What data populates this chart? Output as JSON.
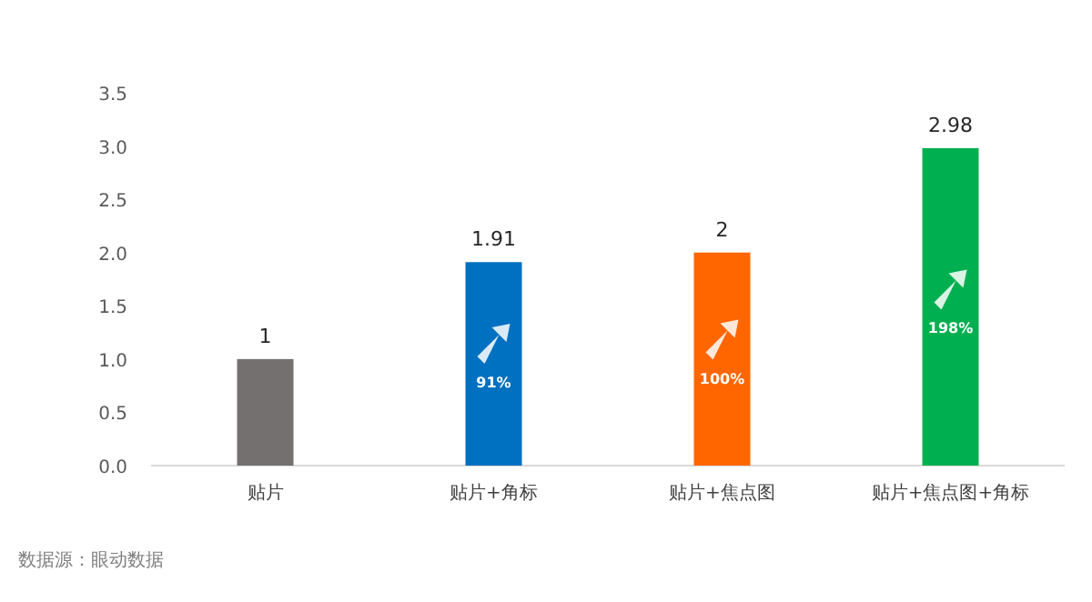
{
  "chart_data": {
    "type": "bar",
    "categories": [
      "贴片",
      "贴片+角标",
      "贴片+焦点图",
      "贴片+焦点图+角标"
    ],
    "values": [
      1,
      1.91,
      2,
      2.98
    ],
    "colors": [
      "#757070",
      "#0070c0",
      "#ff6600",
      "#00b050"
    ],
    "ylim": [
      0,
      3.5
    ],
    "yticks": [
      {
        "value": 0,
        "label": "0.0"
      },
      {
        "value": 0.5,
        "label": "0.5"
      },
      {
        "value": 1,
        "label": "1.0"
      },
      {
        "value": 1.5,
        "label": "1.5"
      },
      {
        "value": 2,
        "label": "2.0"
      },
      {
        "value": 2.5,
        "label": "2.5"
      },
      {
        "value": 3,
        "label": "3.0"
      },
      {
        "value": 3.5,
        "label": "3.5"
      }
    ],
    "grid": false,
    "data_labels": true,
    "annotations": [
      "91%",
      "100%",
      "198%",
      "数据源：眼动数据"
    ]
  }
}
